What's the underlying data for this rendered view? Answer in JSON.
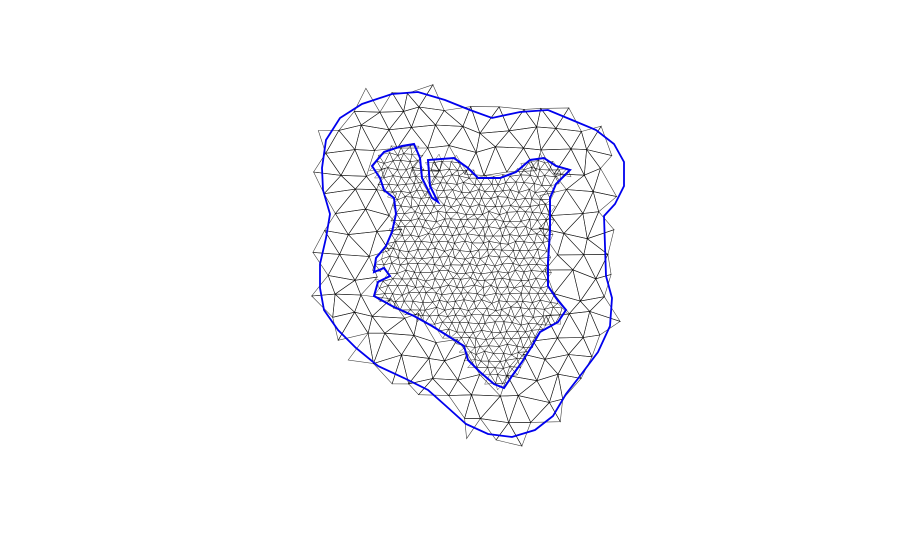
{
  "figure": {
    "type": "triangular-mesh",
    "subject": "Kenya",
    "colors": {
      "background": "#ffffff",
      "mesh_edges": "#000000",
      "boundary": "#0000ee"
    },
    "boundaries": [
      "outer-buffer-boundary",
      "kenya-border"
    ]
  }
}
